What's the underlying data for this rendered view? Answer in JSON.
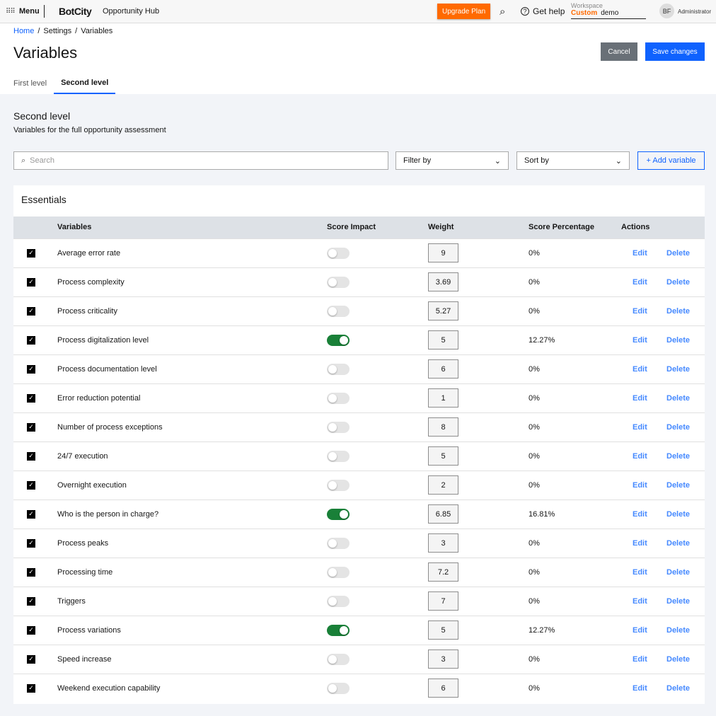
{
  "topbar": {
    "menu": "Menu",
    "logo": "BotCity",
    "app": "Opportunity Hub",
    "upgrade": "Upgrade Plan",
    "help": "Get help",
    "workspace_label": "Workspace",
    "workspace_type": "Custom",
    "workspace_name": "demo",
    "avatar": "BF",
    "role": "Administrator"
  },
  "breadcrumb": [
    "Home",
    "Settings",
    "Variables"
  ],
  "title": "Variables",
  "buttons": {
    "cancel": "Cancel",
    "save": "Save changes"
  },
  "tabs": [
    "First level",
    "Second level"
  ],
  "section": {
    "title": "Second level",
    "desc": "Variables for the full opportunity assessment"
  },
  "controls": {
    "search_placeholder": "Search",
    "filter": "Filter by",
    "sort": "Sort by",
    "add": "+ Add variable"
  },
  "card": {
    "title": "Essentials",
    "columns": [
      "Variables",
      "Score Impact",
      "Weight",
      "Score Percentage",
      "Actions"
    ],
    "edit": "Edit",
    "delete": "Delete",
    "rows": [
      {
        "name": "Average error rate",
        "on": false,
        "weight": "9",
        "pct": "0%"
      },
      {
        "name": "Process complexity",
        "on": false,
        "weight": "3.69",
        "pct": "0%"
      },
      {
        "name": "Process criticality",
        "on": false,
        "weight": "5.27",
        "pct": "0%"
      },
      {
        "name": "Process digitalization level",
        "on": true,
        "weight": "5",
        "pct": "12.27%"
      },
      {
        "name": "Process documentation level",
        "on": false,
        "weight": "6",
        "pct": "0%"
      },
      {
        "name": "Error reduction potential",
        "on": false,
        "weight": "1",
        "pct": "0%"
      },
      {
        "name": "Number of process exceptions",
        "on": false,
        "weight": "8",
        "pct": "0%"
      },
      {
        "name": "24/7 execution",
        "on": false,
        "weight": "5",
        "pct": "0%"
      },
      {
        "name": "Overnight execution",
        "on": false,
        "weight": "2",
        "pct": "0%"
      },
      {
        "name": "Who is the person in charge?",
        "on": true,
        "weight": "6.85",
        "pct": "16.81%"
      },
      {
        "name": "Process peaks",
        "on": false,
        "weight": "3",
        "pct": "0%"
      },
      {
        "name": "Processing time",
        "on": false,
        "weight": "7.2",
        "pct": "0%"
      },
      {
        "name": "Triggers",
        "on": false,
        "weight": "7",
        "pct": "0%"
      },
      {
        "name": "Process variations",
        "on": true,
        "weight": "5",
        "pct": "12.27%"
      },
      {
        "name": "Speed increase",
        "on": false,
        "weight": "3",
        "pct": "0%"
      },
      {
        "name": "Weekend execution capability",
        "on": false,
        "weight": "6",
        "pct": "0%"
      }
    ]
  }
}
